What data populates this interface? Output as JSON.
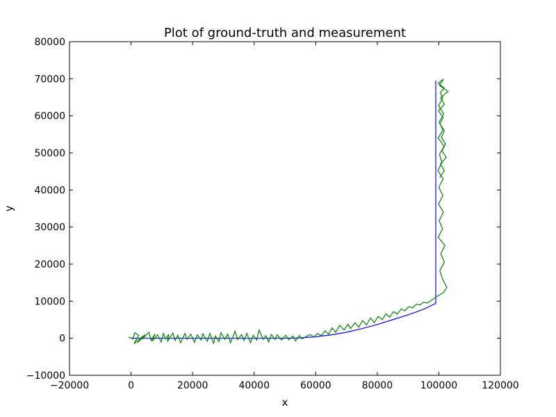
{
  "chart_data": {
    "type": "line",
    "title": "Plot of ground-truth and measurement",
    "xlabel": "x",
    "ylabel": "y",
    "xlim": [
      -20000,
      120000
    ],
    "ylim": [
      -10000,
      80000
    ],
    "xticks": [
      -20000,
      0,
      20000,
      40000,
      60000,
      80000,
      100000,
      120000
    ],
    "yticks": [
      -10000,
      0,
      10000,
      20000,
      30000,
      40000,
      50000,
      60000,
      70000,
      80000
    ],
    "xtick_labels": [
      "−20000",
      "0",
      "20000",
      "40000",
      "60000",
      "80000",
      "100000",
      "120000"
    ],
    "ytick_labels": [
      "−10000",
      "0",
      "10000",
      "20000",
      "30000",
      "40000",
      "50000",
      "60000",
      "70000",
      "80000"
    ],
    "grid": false,
    "legend": false,
    "series": [
      {
        "color": "#0000ff",
        "x": [
          0,
          10000,
          20000,
          30000,
          40000,
          50000,
          55000,
          60000,
          65000,
          70000,
          75000,
          80000,
          85000,
          90000,
          95000,
          99000,
          99000,
          99000,
          99000,
          99000,
          99000,
          99000,
          99000
        ],
        "y": [
          0,
          0,
          0,
          0,
          0,
          0,
          100,
          400,
          900,
          1600,
          2600,
          3700,
          5000,
          6300,
          7800,
          9400,
          15000,
          25000,
          35000,
          45000,
          55000,
          65000,
          69500
        ]
      },
      {
        "color": "#008000",
        "x": [
          -800,
          600,
          1200,
          2500,
          1000,
          3800,
          2200,
          4500,
          3500,
          5800,
          6500,
          7800,
          6900,
          8600,
          9800,
          10500,
          11200,
          12300,
          11800,
          13600,
          14300,
          15200,
          16100,
          17500,
          18200,
          19400,
          20600,
          21500,
          22800,
          23300,
          24800,
          25600,
          26800,
          27400,
          28600,
          29200,
          30500,
          31400,
          32300,
          33800,
          34600,
          35900,
          36700,
          37600,
          38800,
          39700,
          40800,
          41600,
          42900,
          43800,
          44700,
          45600,
          46800,
          47500,
          48900,
          50200,
          51300,
          52600,
          53400,
          54700,
          55600,
          56900,
          58200,
          59400,
          60500,
          61800,
          63000,
          64200,
          65300,
          66500,
          67800,
          69200,
          70500,
          71300,
          72800,
          74000,
          75200,
          76500,
          77800,
          79000,
          80300,
          81600,
          82800,
          84000,
          85300,
          86500,
          87800,
          89000,
          90200,
          91500,
          92700,
          93800,
          95000,
          96200,
          97200,
          98200,
          99300,
          100200,
          101500,
          102600,
          101200,
          100300,
          101800,
          100600,
          102000,
          99800,
          101200,
          100100,
          101500,
          99900,
          101300,
          100000,
          101400,
          99700,
          101000,
          100200,
          101700,
          99800,
          101300,
          100100,
          101600,
          99900,
          101200,
          100500,
          101700,
          99800,
          101500,
          100200,
          103000,
          100600,
          101800,
          99900,
          101400,
          100300,
          101800,
          100800,
          102200,
          101000,
          102400,
          100500,
          101800,
          100300
        ],
        "y": [
          300,
          -200,
          1500,
          800,
          -1500,
          500,
          -1200,
          1000,
          -300,
          1600,
          -600,
          1200,
          -800,
          900,
          -1000,
          1300,
          -200,
          1100,
          -900,
          1400,
          -600,
          800,
          -1200,
          1300,
          -300,
          1100,
          -1100,
          900,
          -500,
          1200,
          -800,
          1300,
          -1400,
          600,
          -900,
          1500,
          -300,
          1100,
          -1200,
          1900,
          -400,
          1000,
          -600,
          1300,
          -1200,
          800,
          -500,
          2200,
          -300,
          700,
          -1000,
          1000,
          -300,
          900,
          -500,
          800,
          -400,
          600,
          -700,
          700,
          -200,
          500,
          1000,
          300,
          1300,
          700,
          2000,
          1100,
          2800,
          1600,
          3500,
          2200,
          3800,
          2600,
          4200,
          3000,
          4800,
          3600,
          5500,
          4200,
          5900,
          5000,
          6600,
          5700,
          7200,
          6500,
          7900,
          7400,
          8500,
          8200,
          9200,
          9000,
          9700,
          9500,
          10000,
          10600,
          11200,
          11700,
          12300,
          13700,
          16000,
          18300,
          20500,
          22800,
          25000,
          27200,
          29500,
          31700,
          34000,
          36200,
          38500,
          40700,
          43000,
          45200,
          47400,
          49600,
          51800,
          54000,
          56200,
          58300,
          60500,
          62700,
          64800,
          66300,
          67500,
          68800,
          69900,
          68200,
          66600,
          64900,
          63100,
          61400,
          59500,
          57800,
          56000,
          54200,
          52400,
          50600,
          48800,
          47000,
          45200,
          43400
        ]
      }
    ]
  },
  "colors": {
    "ground_truth": "#0000ff",
    "measurement": "#008000",
    "axes": "#000000",
    "background": "#ffffff"
  }
}
